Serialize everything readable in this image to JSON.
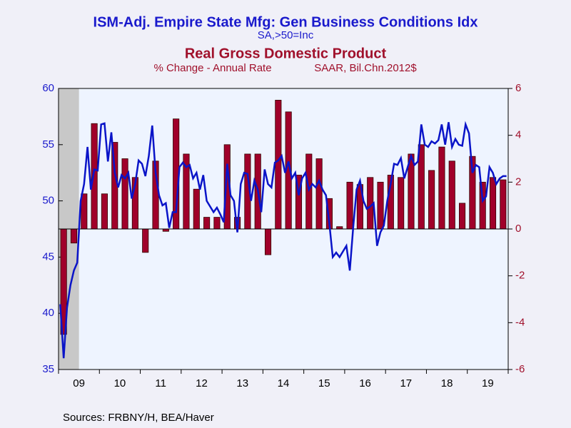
{
  "chart_data": {
    "type": "bar-line",
    "title": "ISM-Adj. Empire State Mfg: Gen Business Conditions Idx",
    "subtitle": "SA,>50=Inc",
    "title2": "Real Gross Domestic Product",
    "subtitle2a": "% Change - Annual Rate",
    "subtitle2b": "SAAR, Bil.Chn.2012$",
    "source": "Sources:  FRBNY/H, BEA/Haver",
    "xlim": [
      2009,
      2020
    ],
    "xticks": [
      {
        "value": 2009.5,
        "label": "09"
      },
      {
        "value": 2010.5,
        "label": "10"
      },
      {
        "value": 2011.5,
        "label": "11"
      },
      {
        "value": 2012.5,
        "label": "12"
      },
      {
        "value": 2013.5,
        "label": "13"
      },
      {
        "value": 2014.5,
        "label": "14"
      },
      {
        "value": 2015.5,
        "label": "15"
      },
      {
        "value": 2016.5,
        "label": "16"
      },
      {
        "value": 2017.5,
        "label": "17"
      },
      {
        "value": 2018.5,
        "label": "18"
      },
      {
        "value": 2019.5,
        "label": "19"
      }
    ],
    "recession": [
      2009,
      2009.5
    ],
    "ylim": [
      35,
      60
    ],
    "yticks": [
      35,
      40,
      45,
      50,
      55,
      60
    ],
    "y2lim": [
      -6,
      6
    ],
    "y2ticks": [
      -6,
      -4,
      -2,
      0,
      2,
      4,
      6
    ],
    "series": [
      {
        "name": "Real Gross Domestic Product",
        "type": "bar",
        "axis": "y2",
        "color": "#a0002a",
        "values": [
          -4.5,
          -0.6,
          1.5,
          4.5,
          1.5,
          3.7,
          3.0,
          2.2,
          -1.0,
          2.9,
          -0.1,
          4.7,
          3.2,
          1.7,
          0.5,
          0.5,
          3.6,
          0.5,
          3.2,
          3.2,
          -1.1,
          5.5,
          5.0,
          2.3,
          3.2,
          3.0,
          1.3,
          0.1,
          2.0,
          1.9,
          2.2,
          2.0,
          2.3,
          2.2,
          3.2,
          3.6,
          2.5,
          3.5,
          2.9,
          1.1,
          3.1,
          2.0,
          2.2,
          2.1
        ]
      },
      {
        "name": "ISM-Adj. Empire State Mfg: Gen Business Conditions Idx",
        "type": "line",
        "axis": "y",
        "color": "#0a14c8",
        "values": [
          40.8,
          36.0,
          40.5,
          42.5,
          43.8,
          44.5,
          50.0,
          51.5,
          54.8,
          51.0,
          52.8,
          52.7,
          56.8,
          56.9,
          53.5,
          56.1,
          52.5,
          51.2,
          52.3,
          52.0,
          52.5,
          50.2,
          51.5,
          53.6,
          53.3,
          52.2,
          54.0,
          56.7,
          52.5,
          50.5,
          49.6,
          49.8,
          47.6,
          49.0,
          49.0,
          53.0,
          53.4,
          53.0,
          53.2,
          52.0,
          52.5,
          51.0,
          52.3,
          50.0,
          49.5,
          49.0,
          49.4,
          48.8,
          48.1,
          53.3,
          50.5,
          50.0,
          47.2,
          51.5,
          52.5,
          52.4,
          50.0,
          51.8,
          51.0,
          49.0,
          52.8,
          51.5,
          51.2,
          53.4,
          53.6,
          54.0,
          52.5,
          53.5,
          52.0,
          52.5,
          50.5,
          52.0,
          52.5,
          51.0,
          51.5,
          51.2,
          51.8,
          51.0,
          50.5,
          48.0,
          45.0,
          45.4,
          45.0,
          45.5,
          46.0,
          43.8,
          47.6,
          51.0,
          51.8,
          50.0,
          49.3,
          49.5,
          49.8,
          46.0,
          47.2,
          47.8,
          50.0,
          51.5,
          53.3,
          53.2,
          53.8,
          52.0,
          53.0,
          54.0,
          53.2,
          53.5,
          56.8,
          55.0,
          54.8,
          55.3,
          55.1,
          55.4,
          56.8,
          55.0,
          57.0,
          54.8,
          55.5,
          55.0,
          54.9,
          56.8,
          56.0,
          52.5,
          53.2,
          53.0,
          50.0,
          50.4,
          53.0,
          52.5,
          51.5,
          52.0,
          52.2,
          52.2
        ]
      }
    ]
  }
}
